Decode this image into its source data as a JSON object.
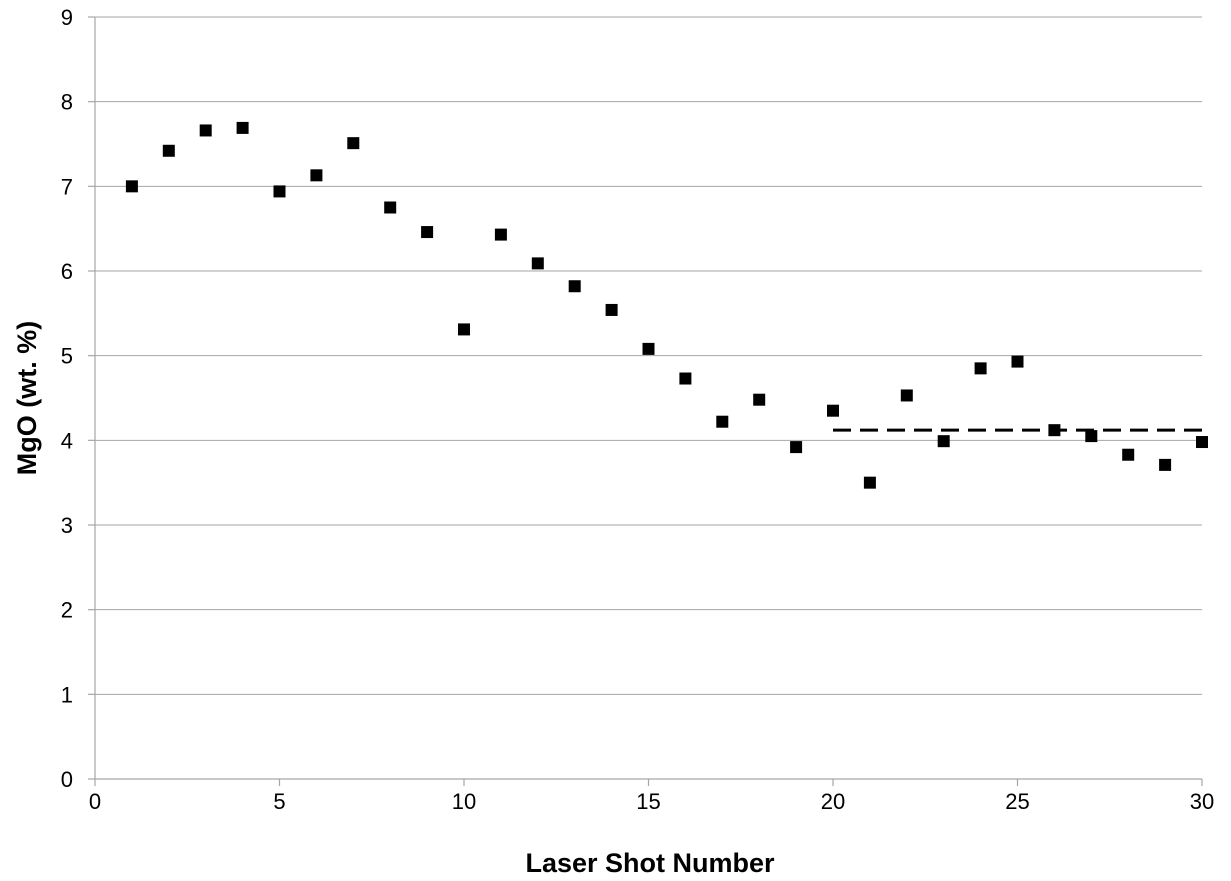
{
  "chart_data": {
    "type": "scatter",
    "title": "",
    "xlabel": "Laser Shot Number",
    "ylabel": "MgO (wt. %)",
    "xlim": [
      0,
      30
    ],
    "ylim": [
      0,
      9
    ],
    "x_ticks": [
      "0",
      "5",
      "10",
      "15",
      "20",
      "25",
      "30"
    ],
    "y_ticks": [
      "0",
      "1",
      "2",
      "3",
      "4",
      "5",
      "6",
      "7",
      "8",
      "9"
    ],
    "grid": "horizontal",
    "marker": "square",
    "marker_color": "#000000",
    "series": [
      {
        "points": [
          [
            1,
            7.0
          ],
          [
            2,
            7.42
          ],
          [
            3,
            7.66
          ],
          [
            4,
            7.69
          ],
          [
            5,
            6.94
          ],
          [
            6,
            7.13
          ],
          [
            7,
            7.51
          ],
          [
            8,
            6.75
          ],
          [
            9,
            6.46
          ],
          [
            10,
            5.31
          ],
          [
            11,
            6.43
          ],
          [
            12,
            6.09
          ],
          [
            13,
            5.82
          ],
          [
            14,
            5.54
          ],
          [
            15,
            5.08
          ],
          [
            16,
            4.73
          ],
          [
            17,
            4.22
          ],
          [
            18,
            4.48
          ],
          [
            19,
            3.92
          ],
          [
            20,
            4.35
          ],
          [
            21,
            3.5
          ],
          [
            22,
            4.53
          ],
          [
            23,
            3.99
          ],
          [
            24,
            4.85
          ],
          [
            25,
            4.93
          ],
          [
            26,
            4.12
          ],
          [
            27,
            4.05
          ],
          [
            28,
            3.83
          ],
          [
            29,
            3.71
          ],
          [
            30,
            3.98
          ]
        ]
      }
    ],
    "reference_line": {
      "style": "dashed",
      "color": "#000000",
      "x": [
        20,
        30
      ],
      "y": 4.12
    }
  }
}
